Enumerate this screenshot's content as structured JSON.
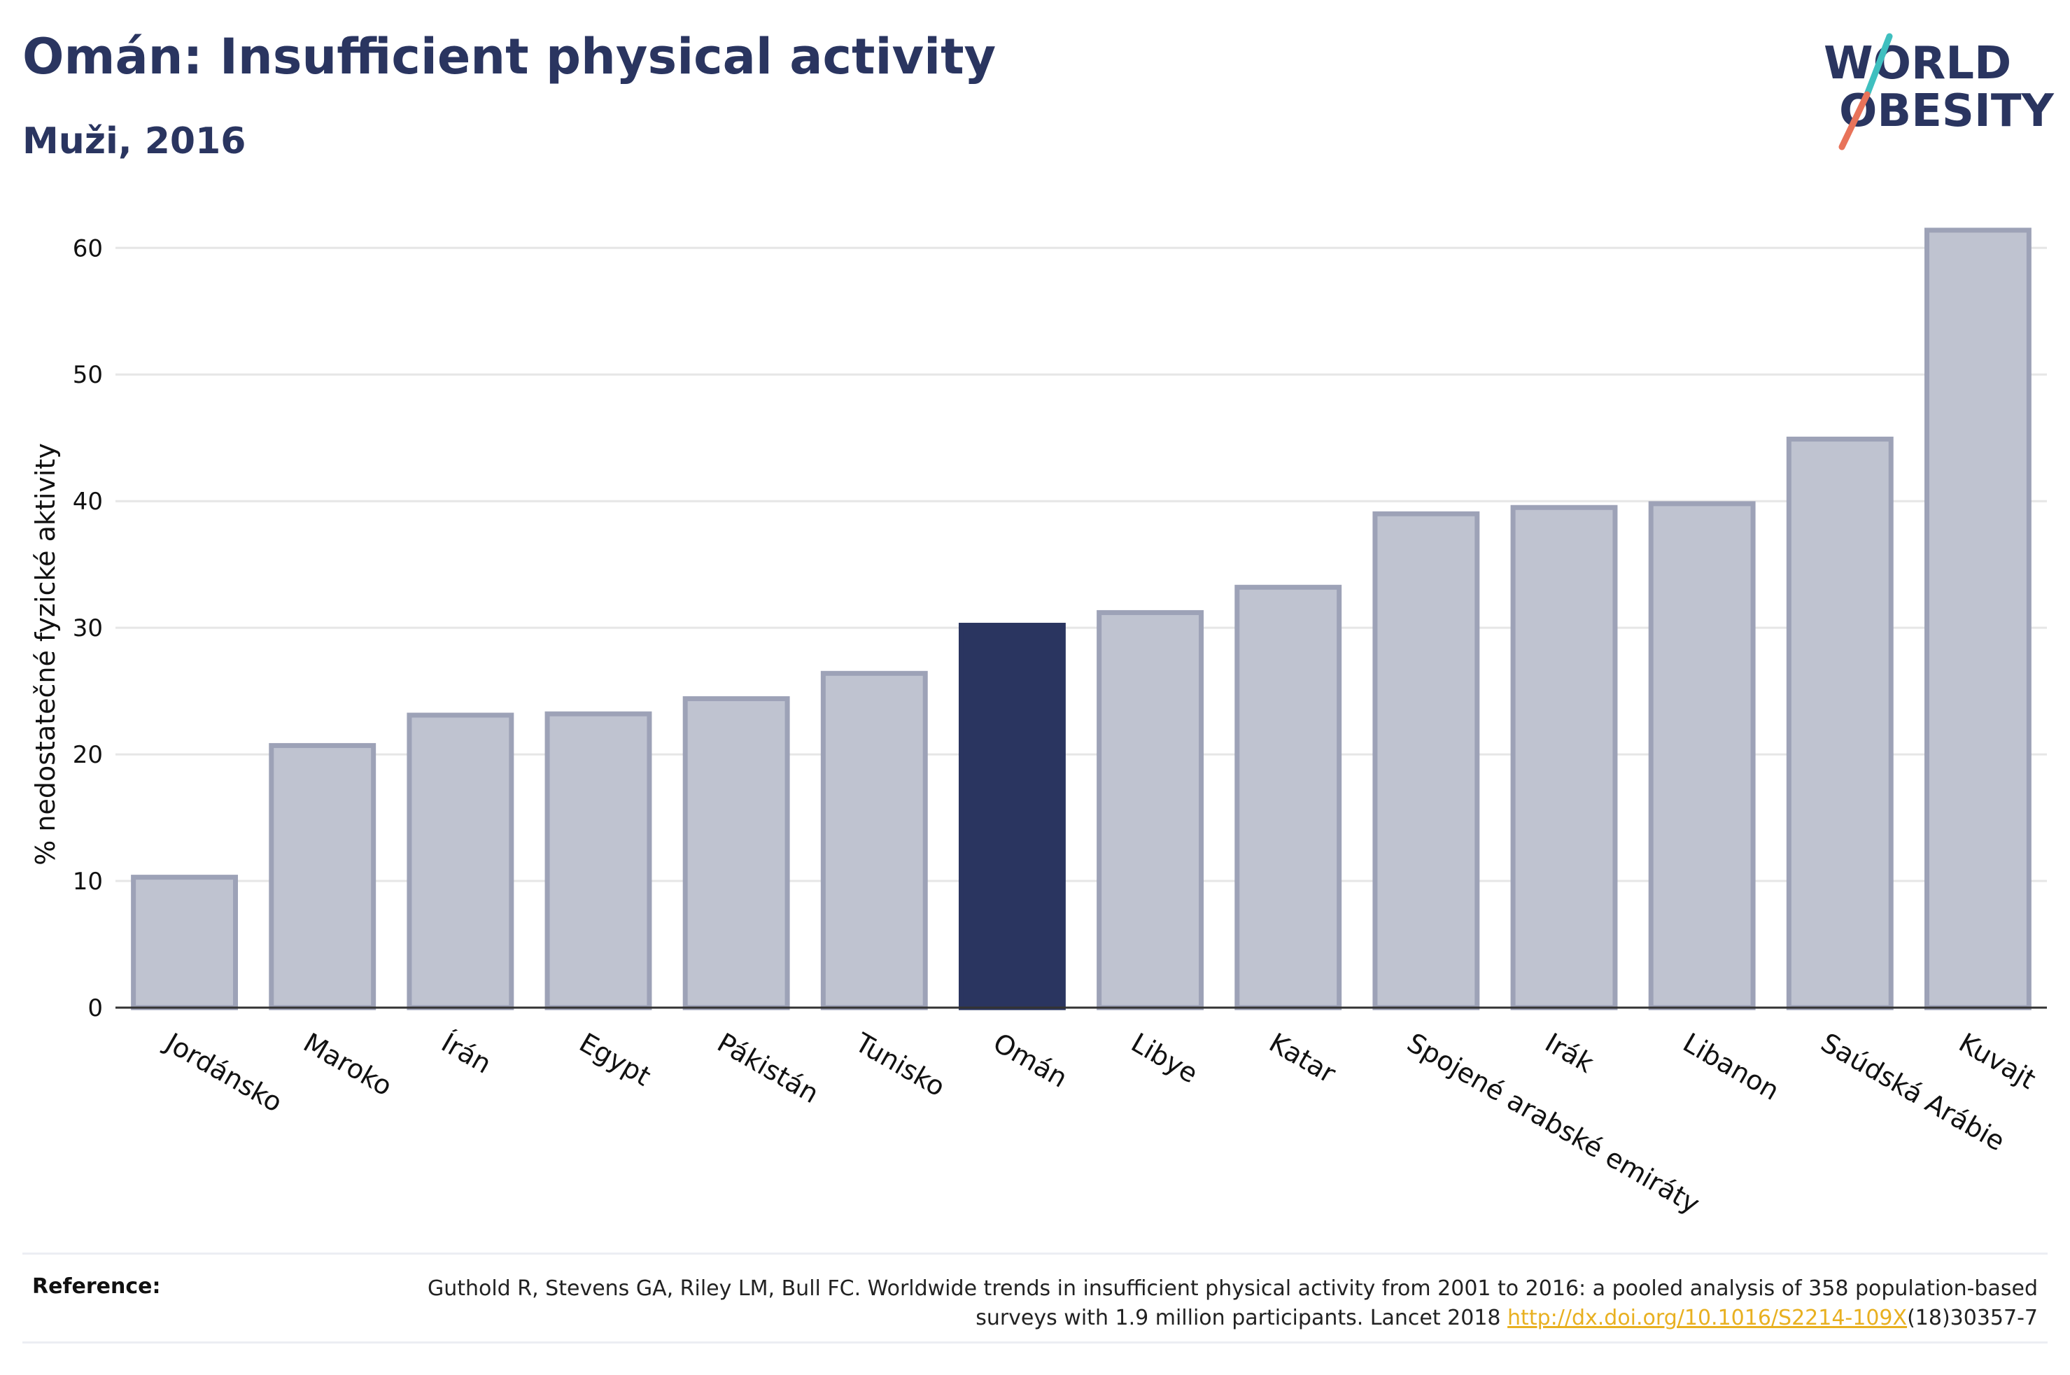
{
  "header": {
    "title": "Omán: Insufficient physical activity",
    "subtitle": "Muži, 2016"
  },
  "logo": {
    "line1": "WORLD",
    "line2": "OBESITY",
    "colors": {
      "text": "#2a3560",
      "slash_top": "#3fbfbf",
      "slash_bottom": "#e8735a"
    }
  },
  "chart_data": {
    "type": "bar",
    "title": "Omán: Insufficient physical activity",
    "subtitle": "Muži, 2016",
    "xlabel": "",
    "ylabel": "% nedostatečné fyzické aktivity",
    "ylim": [
      0,
      63
    ],
    "yticks": [
      0,
      10,
      20,
      30,
      40,
      50,
      60
    ],
    "grid": true,
    "categories": [
      "Jordánsko",
      "Maroko",
      "Írán",
      "Egypt",
      "Pákistán",
      "Tunisko",
      "Omán",
      "Libye",
      "Katar",
      "Spojené arabské emiráty",
      "Irák",
      "Libanon",
      "Saúdská Arábie",
      "Kuvajt"
    ],
    "values": [
      10.3,
      20.7,
      23.1,
      23.2,
      24.4,
      26.4,
      30.2,
      31.2,
      33.2,
      39.0,
      39.5,
      39.8,
      44.9,
      61.4
    ],
    "highlight": "Omán",
    "colors": {
      "bar": "#bfc3d0",
      "bar_border": "#9da2b7",
      "highlight": "#2a3560",
      "grid": "#e6e6e6",
      "axis": "#333333"
    }
  },
  "reference": {
    "label": "Reference:",
    "text_before": "Guthold R, Stevens GA, Riley LM, Bull FC. Worldwide trends in insufficient physical activity from 2001 to 2016: a pooled analysis of 358 population-based surveys with 1.9 million participants. Lancet 2018 ",
    "link": "http://dx.doi.org/10.1016/S2214-109X",
    "text_after": "(18)30357-7",
    "link_color": "#e8b020"
  }
}
